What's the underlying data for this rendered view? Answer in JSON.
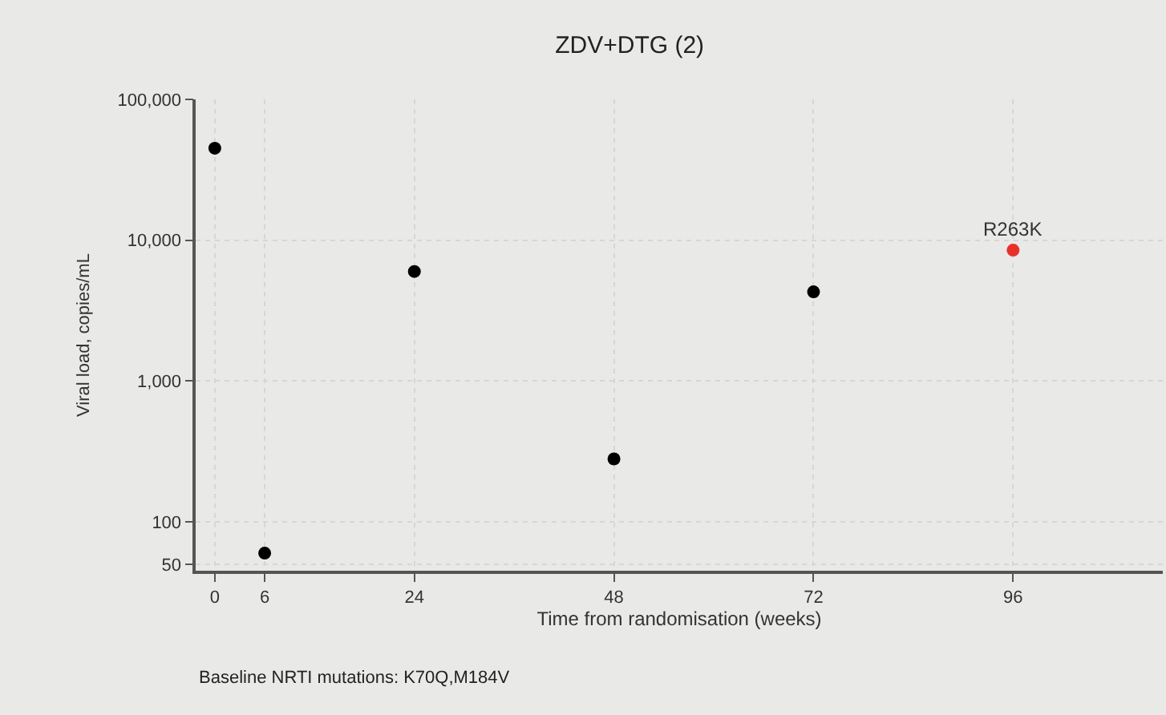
{
  "chart_data": {
    "type": "scatter",
    "title": "ZDV+DTG (2)",
    "xlabel": "Time from randomisation (weeks)",
    "ylabel": "Viral load, copies/mL",
    "x": [
      0,
      6,
      24,
      48,
      72,
      96
    ],
    "series": [
      {
        "values": [
          45000,
          60,
          6000,
          280,
          4300,
          8500
        ],
        "colors": [
          "#000000",
          "#000000",
          "#000000",
          "#000000",
          "#000000",
          "#e8302a"
        ]
      }
    ],
    "xlim": [
      -2.3,
      114
    ],
    "xticks": [
      0,
      6,
      24,
      48,
      72,
      96
    ],
    "ylim": [
      45,
      100000
    ],
    "yticks": [
      {
        "value": 50,
        "label": "50"
      },
      {
        "value": 100,
        "label": "100"
      },
      {
        "value": 1000,
        "label": "1,000"
      },
      {
        "value": 10000,
        "label": "10,000"
      },
      {
        "value": 100000,
        "label": "100,000"
      }
    ],
    "log": "y",
    "grid": true,
    "annotations": [
      {
        "text": "R263K",
        "x": 96,
        "y": 8500
      },
      "Baseline NRTI mutations: K70Q,M184V"
    ]
  }
}
